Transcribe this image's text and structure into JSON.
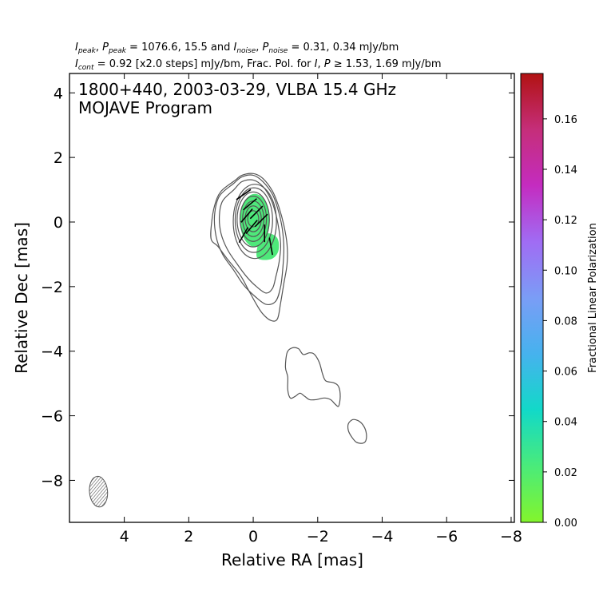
{
  "chart_data": {
    "type": "contour",
    "header_line1": "I_peak, P_peak = 1076.6, 15.5 and I_noise, P_noise = 0.31, 0.34 mJy/bm",
    "header_line1_parts": {
      "ipeak_sym": "I",
      "ipeak_sub": "peak",
      "ppeak_sym": "P",
      "ppeak_sub": "peak",
      "values1": " = 1076.6, 15.5 and ",
      "inoise_sym": "I",
      "inoise_sub": "noise",
      "pnoise_sym": "P",
      "pnoise_sub": "noise",
      "values2": " = 0.31, 0.34 mJy/bm"
    },
    "header_line2": "I_cont = 0.92 [x2.0 steps] mJy/bm, Frac. Pol. for I, P ≥ 1.53, 1.69 mJy/bm",
    "header_line2_parts": {
      "icont_sym": "I",
      "icont_sub": "cont",
      "text1": " = 0.92 [x2.0 steps] mJy/bm, Frac. Pol. for ",
      "i_sym": "I",
      "sep": ", ",
      "p_sym": "P",
      "text2": " ≥ 1.53, 1.69 mJy/bm"
    },
    "source_title": "1800+440, 2003-03-29, VLBA 15.4 GHz",
    "program_title": "MOJAVE Program",
    "xlabel": "Relative RA [mas]",
    "ylabel": "Relative Dec [mas]",
    "xlim": [
      5.7,
      -8.1
    ],
    "ylim": [
      -9.3,
      4.6
    ],
    "x_ticks": [
      4,
      2,
      0,
      -2,
      -4,
      -6,
      -8
    ],
    "x_tick_labels": [
      "4",
      "2",
      "0",
      "−2",
      "−4",
      "−6",
      "−8"
    ],
    "y_ticks": [
      4,
      2,
      0,
      -2,
      -4,
      -6,
      -8
    ],
    "y_tick_labels": [
      "4",
      "2",
      "0",
      "−2",
      "−4",
      "−6",
      "−8"
    ],
    "contour_base_mJy": 0.92,
    "contour_step_factor": 2.0,
    "core_contours": [
      {
        "ra": 0.0,
        "dec": 0.1,
        "a": 0.25,
        "b": 0.17
      },
      {
        "ra": 0.0,
        "dec": 0.1,
        "a": 0.4,
        "b": 0.25
      },
      {
        "ra": 0.0,
        "dec": 0.1,
        "a": 0.55,
        "b": 0.33
      },
      {
        "ra": 0.0,
        "dec": 0.1,
        "a": 0.7,
        "b": 0.41
      },
      {
        "ra": 0.0,
        "dec": 0.08,
        "a": 0.85,
        "b": 0.5
      },
      {
        "ra": -0.02,
        "dec": 0.06,
        "a": 1.0,
        "b": 0.58
      },
      {
        "ra": -0.05,
        "dec": 0.02,
        "a": 1.15,
        "b": 0.67
      }
    ],
    "jet_contours": [
      [
        [
          0.6,
          1.0
        ],
        [
          0.95,
          0.65
        ],
        [
          1.05,
          0.2
        ],
        [
          1.0,
          -0.35
        ],
        [
          0.8,
          -0.85
        ],
        [
          0.5,
          -1.3
        ],
        [
          0.2,
          -1.7
        ],
        [
          -0.1,
          -2.0
        ],
        [
          -0.4,
          -2.2
        ],
        [
          -0.6,
          -2.05
        ],
        [
          -0.7,
          -1.7
        ],
        [
          -0.8,
          -1.25
        ],
        [
          -0.85,
          -0.75
        ],
        [
          -0.8,
          -0.25
        ],
        [
          -0.7,
          0.25
        ],
        [
          -0.55,
          0.7
        ],
        [
          -0.3,
          1.1
        ],
        [
          0.0,
          1.3
        ],
        [
          0.35,
          1.25
        ]
      ],
      [
        [
          0.6,
          1.2
        ],
        [
          1.05,
          0.8
        ],
        [
          1.2,
          0.2
        ],
        [
          1.15,
          -0.45
        ],
        [
          0.95,
          -1.0
        ],
        [
          0.6,
          -1.5
        ],
        [
          0.3,
          -1.95
        ],
        [
          -0.05,
          -2.3
        ],
        [
          -0.4,
          -2.55
        ],
        [
          -0.7,
          -2.45
        ],
        [
          -0.85,
          -2.0
        ],
        [
          -0.92,
          -1.4
        ],
        [
          -0.95,
          -0.8
        ],
        [
          -0.9,
          -0.2
        ],
        [
          -0.78,
          0.35
        ],
        [
          -0.6,
          0.85
        ],
        [
          -0.3,
          1.25
        ],
        [
          0.0,
          1.45
        ],
        [
          0.35,
          1.4
        ]
      ],
      [
        [
          0.55,
          1.3
        ],
        [
          1.0,
          0.95
        ],
        [
          1.2,
          0.5
        ],
        [
          1.3,
          -0.1
        ],
        [
          1.3,
          -0.55
        ],
        [
          1.1,
          -0.75
        ],
        [
          0.8,
          -1.15
        ],
        [
          0.4,
          -1.65
        ],
        [
          0.15,
          -2.1
        ],
        [
          -0.1,
          -2.55
        ],
        [
          -0.3,
          -2.85
        ],
        [
          -0.55,
          -3.05
        ],
        [
          -0.75,
          -3.0
        ],
        [
          -0.85,
          -2.5
        ],
        [
          -0.95,
          -1.9
        ],
        [
          -1.05,
          -1.3
        ],
        [
          -1.05,
          -0.7
        ],
        [
          -0.95,
          -0.1
        ],
        [
          -0.8,
          0.45
        ],
        [
          -0.6,
          0.95
        ],
        [
          -0.3,
          1.35
        ],
        [
          0.0,
          1.5
        ],
        [
          0.35,
          1.45
        ]
      ]
    ],
    "knot_contours": [
      [
        [
          -1.05,
          -4.05
        ],
        [
          -1.2,
          -3.9
        ],
        [
          -1.4,
          -3.92
        ],
        [
          -1.55,
          -4.1
        ],
        [
          -1.75,
          -4.05
        ],
        [
          -1.9,
          -4.1
        ],
        [
          -2.05,
          -4.35
        ],
        [
          -2.15,
          -4.7
        ],
        [
          -2.25,
          -4.92
        ],
        [
          -2.5,
          -4.98
        ],
        [
          -2.65,
          -5.1
        ],
        [
          -2.7,
          -5.4
        ],
        [
          -2.65,
          -5.7
        ],
        [
          -2.55,
          -5.65
        ],
        [
          -2.4,
          -5.5
        ],
        [
          -2.2,
          -5.45
        ],
        [
          -1.95,
          -5.5
        ],
        [
          -1.75,
          -5.5
        ],
        [
          -1.6,
          -5.4
        ],
        [
          -1.45,
          -5.3
        ],
        [
          -1.3,
          -5.4
        ],
        [
          -1.15,
          -5.45
        ],
        [
          -1.07,
          -5.2
        ],
        [
          -1.07,
          -4.8
        ],
        [
          -1.0,
          -4.5
        ]
      ],
      [
        [
          -3.08,
          -6.12
        ],
        [
          -3.25,
          -6.15
        ],
        [
          -3.4,
          -6.28
        ],
        [
          -3.5,
          -6.5
        ],
        [
          -3.5,
          -6.75
        ],
        [
          -3.4,
          -6.85
        ],
        [
          -3.2,
          -6.82
        ],
        [
          -3.05,
          -6.65
        ],
        [
          -2.95,
          -6.45
        ],
        [
          -2.95,
          -6.25
        ]
      ]
    ],
    "polarization_region": {
      "ra": -0.05,
      "dec": 0.05,
      "a": 0.82,
      "b": 0.46
    },
    "polarization_tail": [
      [
        -0.45,
        -0.35
      ],
      [
        -0.75,
        -0.5
      ],
      [
        -0.78,
        -0.9
      ],
      [
        -0.55,
        -1.15
      ],
      [
        -0.12,
        -1.1
      ],
      [
        -0.2,
        -0.55
      ]
    ],
    "polarization_color": "#4ee87a",
    "evpa_ticks": [
      {
        "ra": 0.3,
        "dec": 0.85,
        "angle_deg": -55
      },
      {
        "ra": 0.1,
        "dec": 0.55,
        "angle_deg": -50
      },
      {
        "ra": -0.1,
        "dec": 0.3,
        "angle_deg": -45
      },
      {
        "ra": 0.2,
        "dec": 0.2,
        "angle_deg": -40
      },
      {
        "ra": -0.25,
        "dec": 0.05,
        "angle_deg": -45
      },
      {
        "ra": 0.05,
        "dec": -0.15,
        "angle_deg": -40
      },
      {
        "ra": -0.35,
        "dec": -0.35,
        "angle_deg": 0
      },
      {
        "ra": -0.55,
        "dec": -0.75,
        "angle_deg": 10
      },
      {
        "ra": 0.3,
        "dec": -0.4,
        "angle_deg": -30
      }
    ],
    "beam": {
      "ra": 4.8,
      "dec": -8.35,
      "major_mas": 0.95,
      "minor_mas": 0.56,
      "pa_deg": -5
    },
    "colorbar": {
      "label": "Fractional Linear Polarization",
      "min": 0.0,
      "max": 0.178,
      "ticks": [
        0.0,
        0.02,
        0.04,
        0.06,
        0.08,
        0.1,
        0.12,
        0.14,
        0.16
      ],
      "tick_labels": [
        "0.00",
        "0.02",
        "0.04",
        "0.06",
        "0.08",
        "0.10",
        "0.12",
        "0.14",
        "0.16"
      ],
      "colormap": [
        "#83f52c",
        "#4aeb7a",
        "#12d9c8",
        "#46b2ee",
        "#7a9df6",
        "#a06cf4",
        "#c42cc0",
        "#c52e7a",
        "#b11212"
      ]
    },
    "contour_color": "#555555"
  }
}
